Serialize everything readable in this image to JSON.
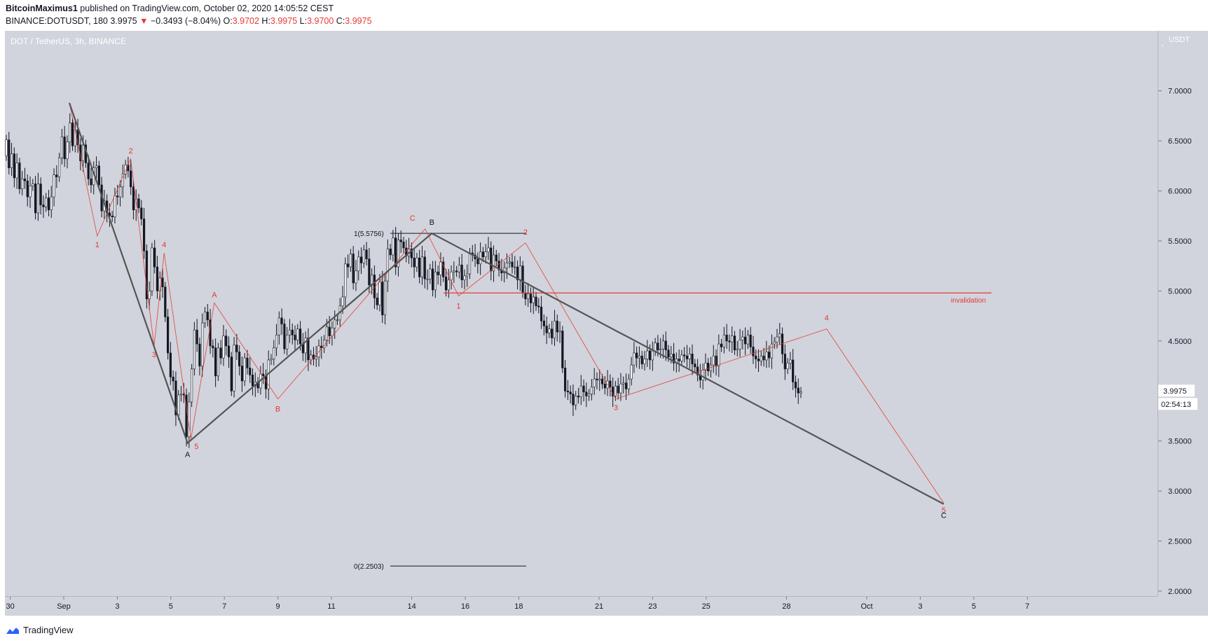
{
  "header": {
    "author": "BitcoinMaximus1",
    "published": "published on TradingView.com, October 02, 2020 14:05:52 CEST",
    "symbol_line": "BINANCE:DOTUSDT, 180",
    "last": "3.9975",
    "change_arrow": "▼",
    "change": "−0.3493 (−8.04%)",
    "o_label": "O:",
    "o": "3.9702",
    "h_label": "H:",
    "h": "3.9975",
    "l_label": "L:",
    "l": "3.9700",
    "c_label": "C:",
    "c": "3.9975"
  },
  "chart": {
    "symbol_caption": "DOT / TetherUS, 3h, BINANCE",
    "currency": "USDT",
    "last_price_label": "3.9975",
    "countdown": "02:54:13",
    "fib_top": "1(5.5756)",
    "fib_bottom": "0(2.2503)",
    "invalidation": "invalidation"
  },
  "footer": {
    "brand": "TradingView"
  },
  "chart_data": {
    "type": "line",
    "series": [
      {
        "values_note": "",
        "points": [
          {
            "x": "Sep 1 05:00",
            "y": 6.88
          },
          {
            "x": "Sep 5 15:00",
            "y": 3.48
          },
          {
            "x": "Sep 14 18:00",
            "y": 5.5756
          },
          {
            "x": "Oct 3 21:00",
            "y": 2.87
          }
        ]
      },
      {
        "points": [
          {
            "x": "Sep 1 05:00",
            "y": 6.88
          },
          {
            "x": "Sep 2 06:00",
            "y": 5.55
          },
          {
            "x": "Sep 3 12:00",
            "y": 6.32
          },
          {
            "x": "Sep 4 09:00",
            "y": 4.45
          },
          {
            "x": "Sep 4 18:00",
            "y": 5.38
          },
          {
            "x": "Sep 5 18:00",
            "y": 3.52
          },
          {
            "x": "Sep 6 15:00",
            "y": 4.88
          },
          {
            "x": "Sep 9 00:00",
            "y": 3.92
          },
          {
            "x": "Sep 14 12:00",
            "y": 5.62
          },
          {
            "x": "Sep 15 18:00",
            "y": 4.95
          },
          {
            "x": "Sep 18 06:00",
            "y": 5.48
          },
          {
            "x": "Sep 21 15:00",
            "y": 3.92
          },
          {
            "x": "Sep 29 12:00",
            "y": 4.62
          },
          {
            "x": "Oct 3 21:00",
            "y": 2.88
          }
        ]
      }
    ],
    "candles": [
      6.51,
      6.23,
      6.37,
      6.13,
      6.28,
      6.02,
      6.12,
      6.1,
      5.94,
      6.05,
      6.07,
      5.78,
      6.07,
      5.86,
      5.84,
      5.93,
      5.81,
      5.94,
      6.16,
      6.14,
      6.33,
      6.54,
      6.32,
      6.49,
      6.68,
      6.45,
      6.61,
      6.46,
      6.3,
      6.46,
      6.28,
      6.12,
      6.06,
      6.23,
      6.25,
      6.06,
      5.8,
      5.9,
      5.78,
      5.75,
      5.74,
      5.95,
      5.94,
      6.04,
      6.17,
      6.26,
      6.2,
      6.04,
      5.81,
      5.92,
      5.83,
      5.72,
      5.4,
      4.92,
      5.0,
      5.43,
      5.24,
      5.0,
      5.13,
      5.04,
      4.74,
      4.38,
      4.14,
      4.1,
      3.76,
      3.96,
      3.97,
      3.96,
      3.54,
      3.89,
      4.22,
      4.61,
      4.47,
      4.25,
      4.68,
      4.79,
      4.71,
      4.45,
      4.43,
      4.15,
      4.43,
      4.33,
      4.55,
      4.45,
      4.34,
      4.0,
      4.46,
      4.39,
      4.25,
      4.1,
      4.33,
      4.23,
      4.16,
      4.05,
      4.09,
      4.03,
      4.17,
      4.15,
      4.02,
      4.31,
      4.32,
      4.43,
      4.56,
      4.73,
      4.67,
      4.42,
      4.56,
      4.61,
      4.56,
      4.51,
      4.62,
      4.47,
      4.38,
      4.53,
      4.31,
      4.36,
      4.32,
      4.34,
      4.45,
      4.43,
      4.51,
      4.64,
      4.55,
      4.63,
      4.71,
      4.71,
      4.85,
      4.94,
      5.27,
      5.24,
      5.37,
      5.08,
      5.2,
      5.34,
      5.28,
      5.41,
      5.32,
      5.06,
      5.16,
      4.93,
      4.86,
      5.09,
      4.76,
      5.1,
      5.42,
      5.36,
      5.53,
      5.24,
      5.51,
      5.49,
      5.43,
      5.35,
      5.42,
      5.33,
      5.24,
      5.33,
      5.14,
      5.34,
      5.12,
      5.12,
      5.22,
      5.01,
      5.19,
      5.16,
      5.29,
      5.14,
      5.01,
      5.11,
      5.19,
      5.2,
      5.19,
      5.26,
      5.11,
      5.15,
      5.17,
      5.38,
      5.36,
      5.32,
      5.27,
      5.39,
      5.34,
      5.39,
      5.43,
      5.2,
      5.36,
      5.3,
      5.21,
      5.18,
      5.23,
      5.28,
      5.29,
      5.24,
      5.24,
      5.11,
      5.25,
      4.98,
      4.92,
      4.97,
      4.88,
      4.94,
      4.85,
      4.84,
      4.7,
      4.65,
      4.58,
      4.62,
      4.53,
      4.7,
      4.59,
      4.6,
      4.23,
      4.0,
      3.99,
      3.97,
      3.86,
      3.95,
      3.94,
      4.05,
      3.99,
      3.95,
      3.97,
      4.04,
      4.12,
      4.11,
      4.12,
      4.07,
      4.03,
      4.1,
      4.04,
      3.95,
      4.05,
      3.98,
      4.07,
      4.08,
      4.02,
      4.12,
      4.26,
      4.38,
      4.33,
      4.35,
      4.27,
      4.32,
      4.4,
      4.31,
      4.4,
      4.48,
      4.41,
      4.42,
      4.5,
      4.41,
      4.34,
      4.37,
      4.28,
      4.32,
      4.3,
      4.36,
      4.35,
      4.32,
      4.37,
      4.27,
      4.24,
      4.16,
      4.11,
      4.21,
      4.28,
      4.2,
      4.26,
      4.35,
      4.25,
      4.47,
      4.44,
      4.56,
      4.5,
      4.49,
      4.55,
      4.41,
      4.42,
      4.51,
      4.54,
      4.47,
      4.56,
      4.44,
      4.35,
      4.32,
      4.3,
      4.35,
      4.31,
      4.39,
      4.33,
      4.47,
      4.49,
      4.54,
      4.57,
      4.37,
      4.22,
      4.28,
      4.31,
      4.09,
      4.03,
      3.98,
      3.99
    ],
    "horizontal_lines": [
      {
        "label": "invalidation",
        "y": 4.98
      },
      {
        "label": "1(5.5756)",
        "y": 5.5756
      },
      {
        "label": "0(2.2503)",
        "y": 2.2503
      }
    ],
    "y_ticks": [
      "7.0000",
      "6.5000",
      "6.0000",
      "5.5000",
      "5.0000",
      "4.5000",
      "4.0000",
      "3.5000",
      "3.0000",
      "2.5000",
      "2.0000"
    ],
    "y_tick_values": [
      7.0,
      6.5,
      6.0,
      5.5,
      5.0,
      4.5,
      4.0,
      3.5,
      3.0,
      2.5,
      2.0
    ],
    "x_ticks": [
      "30",
      "Sep",
      "3",
      "5",
      "7",
      "9",
      "11",
      "14",
      "16",
      "18",
      "21",
      "23",
      "25",
      "28",
      "Oct",
      "3",
      "5",
      "7"
    ],
    "wave_labels": {
      "red": [
        "1",
        "2",
        "3",
        "4",
        "5",
        "A",
        "B",
        "C",
        "1",
        "2",
        "3",
        "4",
        "5"
      ],
      "black": [
        "A",
        "B",
        "C"
      ]
    },
    "ylim": [
      1.95,
      7.6
    ],
    "colors": {
      "up": "#ffffff",
      "down": "#131722",
      "wave": "#e53935",
      "trend": "#555555",
      "background": "#d1d4dc"
    }
  }
}
